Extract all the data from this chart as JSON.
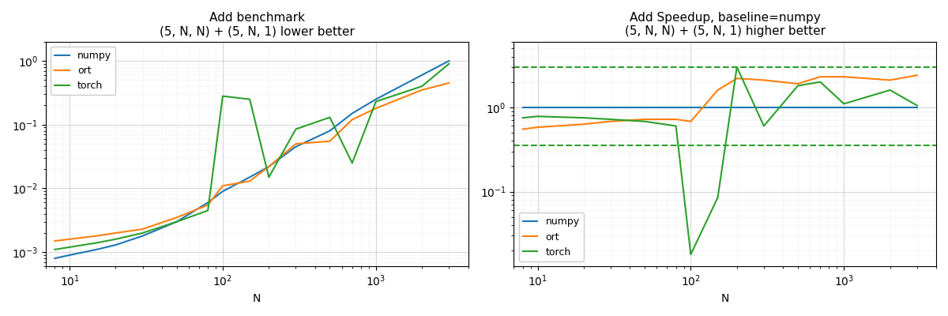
{
  "title_left": "Add benchmark\n(5, N, N) + (5, N, 1) lower better",
  "title_right": "Add Speedup, baseline=numpy\n(5, N, N) + (5, N, 1) higher better",
  "xlabel": "N",
  "colors": {
    "numpy": "#1f77b4",
    "ort": "#ff7f0e",
    "torch": "#2ca02c"
  },
  "N_left": [
    8,
    10,
    15,
    20,
    30,
    50,
    80,
    100,
    150,
    200,
    300,
    500,
    700,
    1000,
    2000,
    3000
  ],
  "numpy_left": [
    0.0008,
    0.0009,
    0.0011,
    0.0013,
    0.0018,
    0.003,
    0.006,
    0.009,
    0.015,
    0.022,
    0.045,
    0.08,
    0.15,
    0.25,
    0.6,
    1.0
  ],
  "ort_left": [
    0.0015,
    0.0016,
    0.0018,
    0.002,
    0.0023,
    0.0035,
    0.0055,
    0.011,
    0.013,
    0.022,
    0.05,
    0.055,
    0.12,
    0.18,
    0.35,
    0.45
  ],
  "torch_left": [
    0.0011,
    0.0012,
    0.0014,
    0.0016,
    0.002,
    0.003,
    0.0045,
    0.28,
    0.25,
    0.015,
    0.085,
    0.13,
    0.025,
    0.23,
    0.4,
    0.9
  ],
  "N_right": [
    8,
    10,
    20,
    30,
    50,
    80,
    100,
    150,
    200,
    300,
    500,
    700,
    1000,
    2000,
    3000
  ],
  "numpy_right": [
    1.0,
    1.0,
    1.0,
    1.0,
    1.0,
    1.0,
    1.0,
    1.0,
    1.0,
    1.0,
    1.0,
    1.0,
    1.0,
    1.0,
    1.0
  ],
  "ort_right": [
    0.55,
    0.58,
    0.63,
    0.68,
    0.72,
    0.72,
    0.68,
    1.6,
    2.2,
    2.1,
    1.9,
    2.3,
    2.3,
    2.1,
    2.4
  ],
  "torch_right": [
    0.75,
    0.78,
    0.75,
    0.72,
    0.68,
    0.6,
    0.018,
    0.085,
    3.0,
    0.6,
    1.8,
    2.0,
    1.1,
    1.6,
    1.05
  ],
  "torch_dashed_upper": 3.0,
  "torch_dashed_lower": 0.35,
  "ylim_left": [
    0.0006,
    2.0
  ],
  "ylim_right": [
    0.013,
    6.0
  ],
  "xlim_left": [
    7,
    4000
  ],
  "xlim_right": [
    7,
    4000
  ]
}
